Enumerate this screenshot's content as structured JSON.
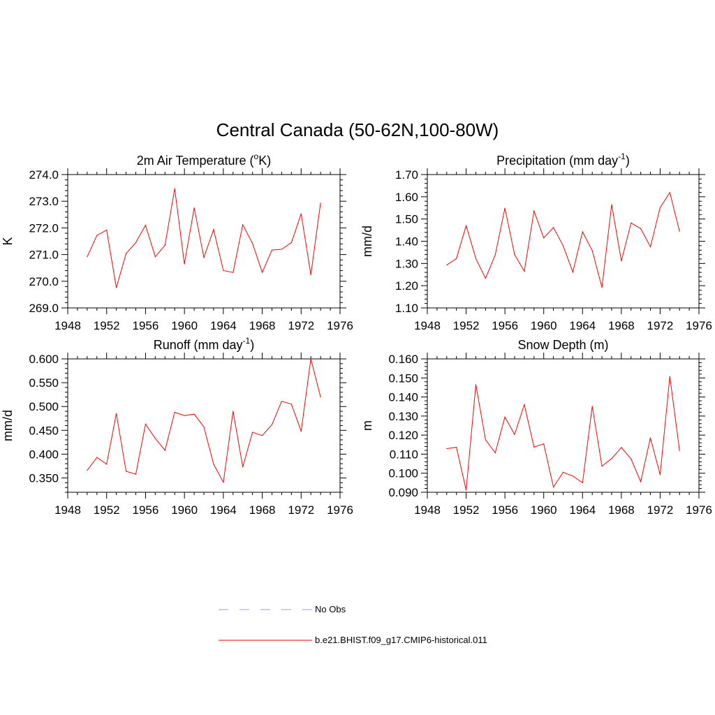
{
  "figure": {
    "title": "Central Canada (50-62N,100-80W)"
  },
  "legend": {
    "items": [
      {
        "label": "No Obs",
        "color": "#9999ff",
        "dash": true
      },
      {
        "label": "b.e21.BHIST.f09_g17.CMIP6-historical.011",
        "color": "#ff0000",
        "dash": false
      }
    ]
  },
  "chart_data": [
    {
      "type": "line",
      "title": "2m Air Temperature (",
      "title_sup": "o",
      "title_end": "K)",
      "ylabel": "K",
      "xlim": [
        1948,
        1976
      ],
      "ylim": [
        269.0,
        274.0
      ],
      "x_ticks": [
        "1948",
        "1952",
        "1956",
        "1960",
        "1964",
        "1968",
        "1972",
        "1976"
      ],
      "y_ticks": [
        "269.0",
        "270.0",
        "271.0",
        "272.0",
        "273.0",
        "274.0"
      ],
      "x": [
        1950,
        1951,
        1952,
        1953,
        1954,
        1955,
        1956,
        1957,
        1958,
        1959,
        1960,
        1961,
        1962,
        1963,
        1964,
        1965,
        1966,
        1967,
        1968,
        1969,
        1970,
        1971,
        1972,
        1973,
        1974
      ],
      "series": [
        {
          "values": [
            270.92,
            271.72,
            271.92,
            269.76,
            271.04,
            271.45,
            272.1,
            270.92,
            271.35,
            273.47,
            270.65,
            272.75,
            270.89,
            271.94,
            270.4,
            270.33,
            272.12,
            271.42,
            270.33,
            271.17,
            271.2,
            271.45,
            272.53,
            270.24,
            272.93
          ]
        }
      ]
    },
    {
      "type": "line",
      "title": "Precipitation (mm day",
      "title_sup": "-1",
      "title_end": ")",
      "ylabel": "mm/d",
      "xlim": [
        1948,
        1976
      ],
      "ylim": [
        1.1,
        1.7
      ],
      "x_ticks": [
        "1948",
        "1952",
        "1956",
        "1960",
        "1964",
        "1968",
        "1972",
        "1976"
      ],
      "y_ticks": [
        "1.10",
        "1.20",
        "1.30",
        "1.40",
        "1.50",
        "1.60",
        "1.70"
      ],
      "x": [
        1950,
        1951,
        1952,
        1953,
        1954,
        1955,
        1956,
        1957,
        1958,
        1959,
        1960,
        1961,
        1962,
        1963,
        1964,
        1965,
        1966,
        1967,
        1968,
        1969,
        1970,
        1971,
        1972,
        1973,
        1974
      ],
      "series": [
        {
          "values": [
            1.293,
            1.322,
            1.47,
            1.322,
            1.233,
            1.339,
            1.549,
            1.34,
            1.265,
            1.536,
            1.415,
            1.462,
            1.38,
            1.261,
            1.442,
            1.358,
            1.192,
            1.565,
            1.311,
            1.482,
            1.457,
            1.375,
            1.551,
            1.619,
            1.445
          ]
        }
      ]
    },
    {
      "type": "line",
      "title": "Runoff (mm day",
      "title_sup": "-1",
      "title_end": ")",
      "ylabel": "mm/d",
      "xlim": [
        1948,
        1976
      ],
      "ylim": [
        0.32,
        0.6
      ],
      "x_ticks": [
        "1948",
        "1952",
        "1956",
        "1960",
        "1964",
        "1968",
        "1972",
        "1976"
      ],
      "y_ticks": [
        "0.350",
        "0.400",
        "0.450",
        "0.500",
        "0.550",
        "0.600"
      ],
      "x": [
        1950,
        1951,
        1952,
        1953,
        1954,
        1955,
        1956,
        1957,
        1958,
        1959,
        1960,
        1961,
        1962,
        1963,
        1964,
        1965,
        1966,
        1967,
        1968,
        1969,
        1970,
        1971,
        1972,
        1973,
        1974
      ],
      "series": [
        {
          "values": [
            0.366,
            0.393,
            0.379,
            0.485,
            0.364,
            0.358,
            0.463,
            0.433,
            0.408,
            0.488,
            0.481,
            0.484,
            0.457,
            0.379,
            0.341,
            0.49,
            0.373,
            0.446,
            0.439,
            0.462,
            0.511,
            0.505,
            0.448,
            0.6,
            0.52
          ]
        }
      ]
    },
    {
      "type": "line",
      "title": "Snow Depth (m)",
      "title_sup": "",
      "title_end": "",
      "ylabel": "m",
      "xlim": [
        1948,
        1976
      ],
      "ylim": [
        0.09,
        0.16
      ],
      "x_ticks": [
        "1948",
        "1952",
        "1956",
        "1960",
        "1964",
        "1968",
        "1972",
        "1976"
      ],
      "y_ticks": [
        "0.090",
        "0.100",
        "0.110",
        "0.120",
        "0.130",
        "0.140",
        "0.150",
        "0.160"
      ],
      "x": [
        1950,
        1951,
        1952,
        1953,
        1954,
        1955,
        1956,
        1957,
        1958,
        1959,
        1960,
        1961,
        1962,
        1963,
        1964,
        1965,
        1966,
        1967,
        1968,
        1969,
        1970,
        1971,
        1972,
        1973,
        1974
      ],
      "series": [
        {
          "values": [
            0.1129,
            0.1136,
            0.0911,
            0.1465,
            0.1175,
            0.1107,
            0.1295,
            0.1203,
            0.136,
            0.1137,
            0.1154,
            0.0927,
            0.1005,
            0.0985,
            0.095,
            0.1351,
            0.1037,
            0.1077,
            0.1135,
            0.1075,
            0.0955,
            0.1186,
            0.0992,
            0.1508,
            0.1119
          ]
        }
      ]
    }
  ]
}
